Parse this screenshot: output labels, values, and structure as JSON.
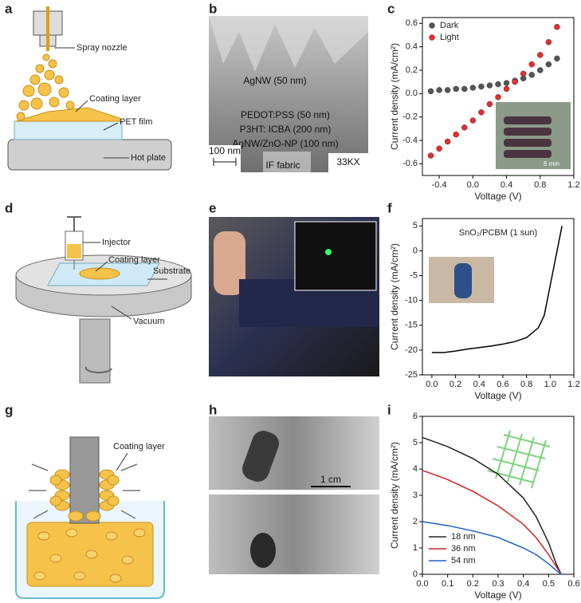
{
  "panel_labels": [
    "a",
    "b",
    "c",
    "d",
    "e",
    "f",
    "g",
    "h",
    "i"
  ],
  "diagram_a": {
    "labels": [
      "Spray nozzle",
      "Coating layer",
      "PET film",
      "Hot plate"
    ]
  },
  "image_b": {
    "layers": [
      "AgNW (50 nm)",
      "PEDOT:PSS (50 nm)",
      "P3HT: ICBA (200 nm)",
      "AgNW/ZnO-NP (100 nm)",
      "IF fabric"
    ],
    "scale_bar": "100 nm",
    "magnification": "33KX"
  },
  "diagram_d": {
    "labels": [
      "Injector",
      "Coating layer",
      "Substrate",
      "Vacuum"
    ]
  },
  "diagram_g": {
    "labels": [
      "Coating layer"
    ]
  },
  "image_h": {
    "scale_bar": "1 cm"
  },
  "chart_data": [
    {
      "type": "scatter",
      "x_label": "Voltage (V)",
      "y_label": "Current density (mA/cm²)",
      "inset_label": "6 mm",
      "x": [
        -0.5,
        -0.4,
        -0.3,
        -0.2,
        -0.1,
        0,
        0.1,
        0.2,
        0.3,
        0.4,
        0.5,
        0.6,
        0.7,
        0.8,
        0.9,
        1.0
      ],
      "series": [
        {
          "name": "Dark",
          "color": "#555555",
          "values": [
            0.02,
            0.03,
            0.03,
            0.04,
            0.04,
            0.05,
            0.06,
            0.07,
            0.08,
            0.09,
            0.11,
            0.13,
            0.16,
            0.2,
            0.25,
            0.3
          ]
        },
        {
          "name": "Light",
          "color": "#ee2a2a",
          "values": [
            -0.53,
            -0.47,
            -0.41,
            -0.35,
            -0.29,
            -0.23,
            -0.16,
            -0.09,
            -0.03,
            0.04,
            0.1,
            0.17,
            0.25,
            0.33,
            0.44,
            0.57
          ]
        }
      ],
      "xlim": [
        -0.6,
        1.2
      ],
      "xticks": [
        -0.4,
        {
          "value": 0,
          "label": "0.0"
        },
        0.4,
        0.8,
        1.2
      ],
      "ylim": [
        -0.7,
        0.65
      ],
      "yticks": [
        -0.6,
        -0.4,
        -0.2,
        {
          "value": 0,
          "label": "0.0"
        },
        0.2,
        0.4,
        0.6
      ],
      "legend": "upper left"
    },
    {
      "type": "line",
      "title": "SnO₂/PCBM (1 sun)",
      "x_label": "Voltage (V)",
      "y_label": "Current density (mA/cm²)",
      "color": "#000000",
      "x": [
        0,
        0.1,
        0.2,
        0.3,
        0.4,
        0.5,
        0.6,
        0.7,
        0.8,
        0.85,
        0.9,
        0.95,
        1.0,
        1.05,
        1.1
      ],
      "values": [
        -20.5,
        -20.5,
        -20.2,
        -19.8,
        -19.5,
        -19.2,
        -18.8,
        -18.3,
        -17.5,
        -16.5,
        -15.5,
        -13,
        -7,
        -1,
        5
      ],
      "xlim": [
        -0.08,
        1.2
      ],
      "xticks": [
        {
          "value": 0,
          "label": "0.0"
        },
        0.2,
        0.4,
        0.6,
        0.8,
        {
          "value": 1,
          "label": "1.0"
        },
        1.2
      ],
      "ylim": [
        -25,
        6.5
      ],
      "yticks": [
        -25,
        -20,
        -15,
        -10,
        -5,
        0,
        5
      ]
    },
    {
      "type": "line",
      "x_label": "Voltage (V)",
      "y_label": "Current density (mA/cm²)",
      "x": [
        0,
        0.1,
        0.2,
        0.3,
        0.4,
        0.45,
        0.5,
        0.53,
        0.55
      ],
      "series": [
        {
          "name": "18 nm",
          "color": "#222222",
          "values": [
            5.2,
            4.85,
            4.4,
            3.8,
            2.9,
            2.2,
            1.2,
            0.4,
            0
          ]
        },
        {
          "name": "36 nm",
          "color": "#d42020",
          "values": [
            3.95,
            3.6,
            3.15,
            2.6,
            1.9,
            1.4,
            0.75,
            0.3,
            0
          ]
        },
        {
          "name": "54 nm",
          "color": "#1a5fc8",
          "values": [
            2.0,
            1.85,
            1.65,
            1.4,
            1.0,
            0.75,
            0.4,
            0.15,
            0
          ]
        }
      ],
      "xlim": [
        0,
        0.6
      ],
      "xticks": [
        {
          "value": 0,
          "label": "0.0"
        },
        0.1,
        0.2,
        0.3,
        0.4,
        0.5,
        0.6
      ],
      "ylim": [
        0,
        6
      ],
      "yticks": [
        0,
        1,
        2,
        3,
        4,
        5,
        6
      ],
      "legend": "lower left"
    }
  ]
}
